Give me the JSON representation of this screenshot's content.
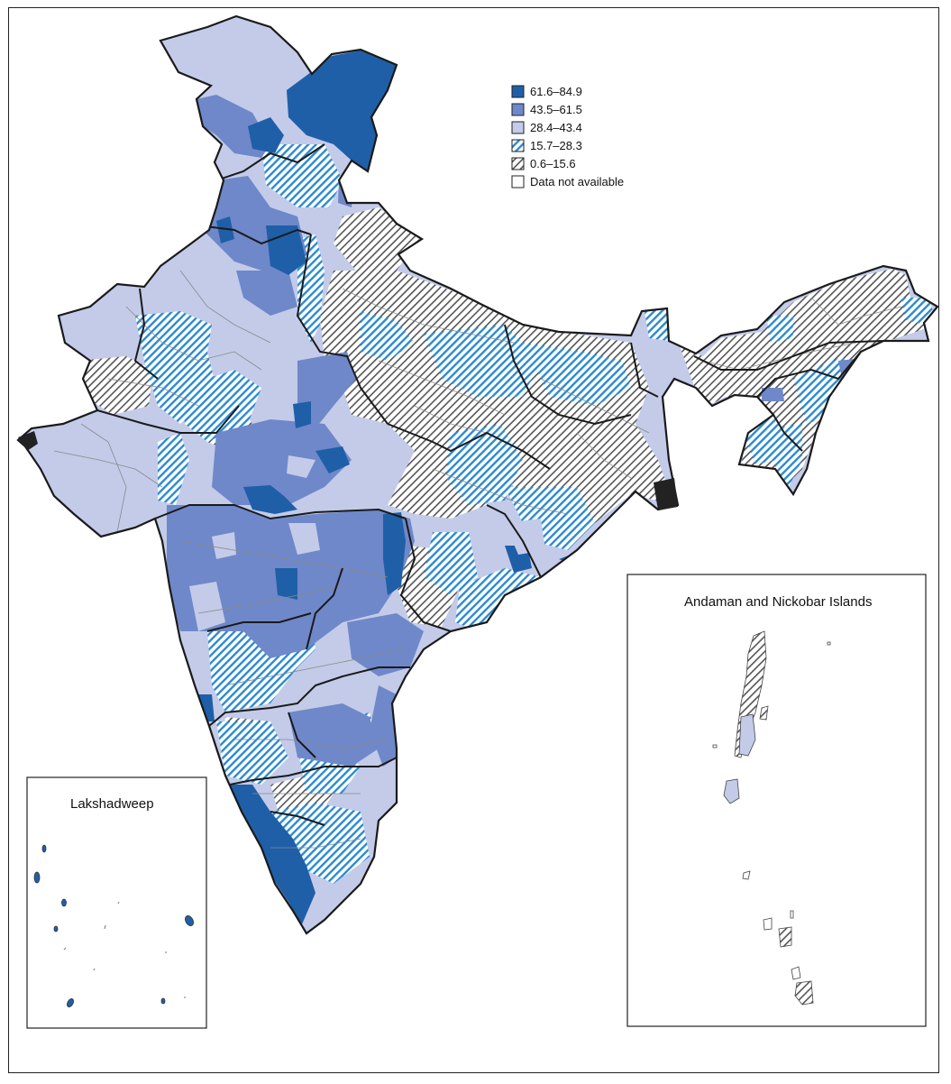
{
  "legend": {
    "items": [
      {
        "label": "61.6–84.9",
        "fill": "#1f5fa8",
        "pattern": "solid"
      },
      {
        "label": "43.5–61.5",
        "fill": "#6f88c9",
        "pattern": "solid"
      },
      {
        "label": "28.4–43.4",
        "fill": "#c3cbe9",
        "pattern": "solid"
      },
      {
        "label": "15.7–28.3",
        "fill": "#2b8bd0",
        "pattern": "hatch-blue"
      },
      {
        "label": "0.6–15.6",
        "fill": "#555555",
        "pattern": "hatch-gray"
      },
      {
        "label": "Data not available",
        "fill": "#ffffff",
        "pattern": "none"
      }
    ]
  },
  "insets": {
    "lakshadweep": {
      "title": "Lakshadweep"
    },
    "andaman": {
      "title": "Andaman and Nickobar Islands"
    }
  },
  "colors": {
    "border": "#1a1a1a",
    "district_line": "#8a8a8a",
    "dark_blue": "#1f5fa8",
    "mid_blue": "#6f88c9",
    "light_blue": "#c3cbe9",
    "hatch_blue": "#2b8bd0",
    "hatch_gray": "#555555"
  }
}
